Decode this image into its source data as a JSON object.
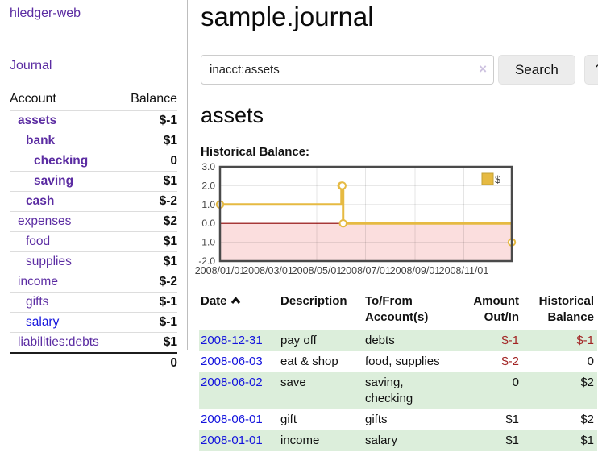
{
  "app": {
    "brand": "hledger-web",
    "nav_journal": "Journal"
  },
  "sidebar": {
    "headers": {
      "account": "Account",
      "balance": "Balance"
    },
    "accounts": [
      {
        "name": "assets",
        "indent": 1,
        "bold": true,
        "balance": "$-1",
        "balance_tone": "neg-strong"
      },
      {
        "name": "bank",
        "indent": 2,
        "bold": true,
        "balance": "$1",
        "balance_tone": "pos"
      },
      {
        "name": "checking",
        "indent": 3,
        "bold": true,
        "balance": "0",
        "balance_tone": "pos"
      },
      {
        "name": "saving",
        "indent": 3,
        "bold": true,
        "balance": "$1",
        "balance_tone": "pos"
      },
      {
        "name": "cash",
        "indent": 2,
        "bold": true,
        "balance": "$-2",
        "balance_tone": "neg-strong"
      },
      {
        "name": "expenses",
        "indent": 1,
        "bold": false,
        "balance": "$2",
        "balance_tone": "pos"
      },
      {
        "name": "food",
        "indent": 2,
        "bold": false,
        "balance": "$1",
        "balance_tone": "pos"
      },
      {
        "name": "supplies",
        "indent": 2,
        "bold": false,
        "balance": "$1",
        "balance_tone": "pos"
      },
      {
        "name": "income",
        "indent": 1,
        "bold": false,
        "balance": "$-2",
        "balance_tone": "neg-muted"
      },
      {
        "name": "gifts",
        "indent": 2,
        "bold": false,
        "balance": "$-1",
        "balance_tone": "neg-muted"
      },
      {
        "name": "salary",
        "indent": 2,
        "bold": false,
        "balance": "$-1",
        "balance_tone": "neg-muted",
        "link_tone": "blue"
      },
      {
        "name": "liabilities:debts",
        "indent": 1,
        "bold": false,
        "balance": "$1",
        "balance_tone": "pos"
      }
    ],
    "total": "0"
  },
  "header": {
    "title": "sample.journal"
  },
  "search": {
    "value": "inacct:assets",
    "clear_icon": "×",
    "button": "Search",
    "help_button": "?"
  },
  "account_page": {
    "title": "assets",
    "chart_label": "Historical Balance:"
  },
  "chart_data": {
    "type": "line",
    "title": "Historical Balance",
    "step": true,
    "xlim": [
      "2008-01-01",
      "2008-12-31"
    ],
    "ylim": [
      -2,
      3
    ],
    "y_ticks": [
      3,
      2,
      1,
      0,
      -1,
      -2
    ],
    "x_ticks": [
      "2008/01/01",
      "2008/03/01",
      "2008/05/01",
      "2008/07/01",
      "2008/09/01",
      "2008/11/01"
    ],
    "series": [
      {
        "name": "$",
        "color": "#e6ba42",
        "points": [
          {
            "date": "2008-01-01",
            "value": 1
          },
          {
            "date": "2008-06-01",
            "value": 2
          },
          {
            "date": "2008-06-02",
            "value": 2
          },
          {
            "date": "2008-06-03",
            "value": 0
          },
          {
            "date": "2008-12-31",
            "value": -1
          }
        ]
      }
    ],
    "legend": {
      "label": "$",
      "position": "top-right"
    },
    "grid": true,
    "negative_region_color": "#fbdede",
    "zero_line_color": "#8b0000",
    "border_color": "#4a4a4a"
  },
  "register": {
    "headers": {
      "date": "Date",
      "description": "Description",
      "account": "To/From Account(s)",
      "amount": "Amount Out/In",
      "balance": "Historical Balance"
    },
    "rows": [
      {
        "date": "2008-12-31",
        "description": "pay off",
        "accounts": "debts",
        "amount": "$-1",
        "balance": "$-1"
      },
      {
        "date": "2008-06-03",
        "description": "eat & shop",
        "accounts": "food, supplies",
        "amount": "$-2",
        "balance": "0"
      },
      {
        "date": "2008-06-02",
        "description": "save",
        "accounts": "saving, checking",
        "amount": "0",
        "balance": "$2"
      },
      {
        "date": "2008-06-01",
        "description": "gift",
        "accounts": "gifts",
        "amount": "$1",
        "balance": "$2"
      },
      {
        "date": "2008-01-01",
        "description": "income",
        "accounts": "salary",
        "amount": "$1",
        "balance": "$1"
      }
    ]
  },
  "colors": {
    "link_purple": "#5b2ca2",
    "link_blue": "#1414dd",
    "negative_strong": "#a01616",
    "negative_muted": "#bb7272",
    "negative_register": "#a22424",
    "row_green": "#dceedb",
    "series_gold": "#e6ba42",
    "chart_negative_bg": "#fbdede",
    "zero_line": "#8b0000",
    "button_bg": "#ececec"
  }
}
